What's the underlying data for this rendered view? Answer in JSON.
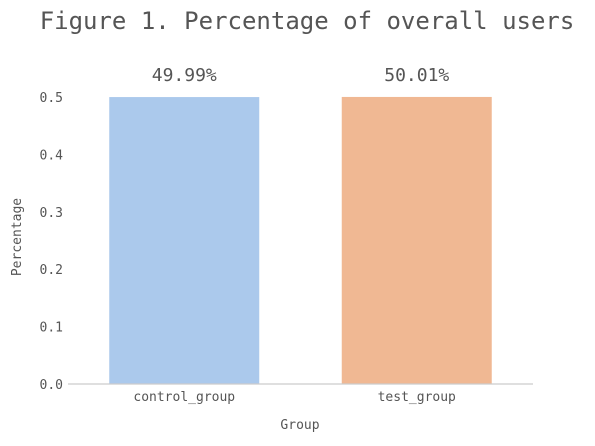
{
  "chart_data": {
    "type": "bar",
    "title": "Figure 1. Percentage of overall users",
    "xlabel": "Group",
    "ylabel": "Percentage",
    "categories": [
      "control_group",
      "test_group"
    ],
    "values": [
      0.4999,
      0.5001
    ],
    "data_labels": [
      "49.99%",
      "50.01%"
    ],
    "ylim": [
      0,
      0.5
    ],
    "yticks": [
      0.0,
      0.1,
      0.2,
      0.3,
      0.4,
      0.5
    ],
    "ytick_labels": [
      "0.0",
      "0.1",
      "0.2",
      "0.3",
      "0.4",
      "0.5"
    ],
    "grid": false,
    "legend": "none",
    "colors": [
      "#abc9ec",
      "#f0b893"
    ],
    "text_color": "#555555",
    "axis_color": "#cccccc"
  }
}
